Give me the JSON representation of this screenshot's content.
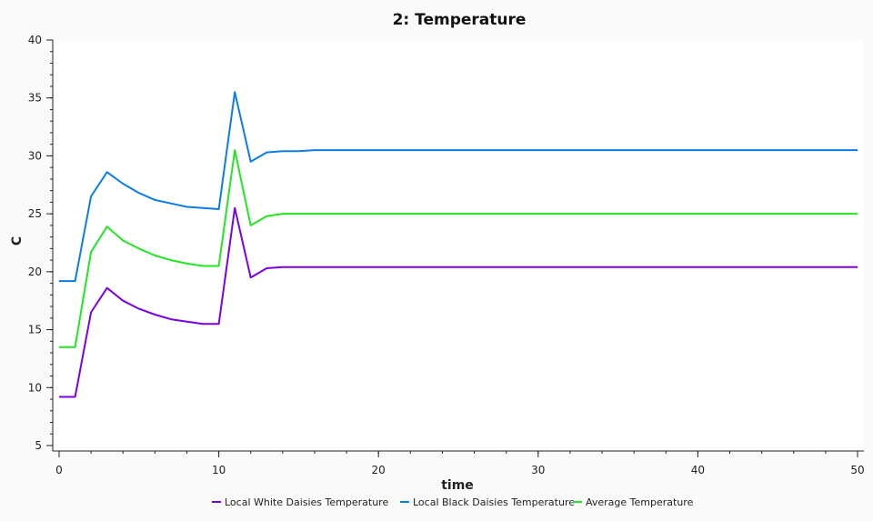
{
  "chart_data": {
    "type": "line",
    "title": "2: Temperature",
    "xlabel": "time",
    "ylabel": "C",
    "xlim": [
      0,
      50
    ],
    "ylim": [
      5,
      40
    ],
    "xticks": [
      0,
      10,
      20,
      30,
      40,
      50
    ],
    "yticks": [
      5,
      10,
      15,
      20,
      25,
      30,
      35,
      40
    ],
    "grid": false,
    "legend_position": "bottom",
    "x": [
      0,
      1,
      2,
      3,
      4,
      5,
      6,
      7,
      8,
      9,
      10,
      11,
      12,
      13,
      14,
      15,
      16,
      17,
      18,
      19,
      20,
      21,
      22,
      23,
      24,
      25,
      26,
      27,
      28,
      29,
      30,
      31,
      32,
      33,
      34,
      35,
      36,
      37,
      38,
      39,
      40,
      41,
      42,
      43,
      44,
      45,
      46,
      47,
      48,
      49,
      50
    ],
    "series": [
      {
        "name": "Local White Daisies Temperature",
        "color": "#7a00e6",
        "values": [
          9.2,
          9.2,
          16.5,
          18.6,
          17.5,
          16.8,
          16.3,
          15.9,
          15.7,
          15.5,
          15.5,
          25.5,
          19.5,
          20.3,
          20.4,
          20.4,
          20.4,
          20.4,
          20.4,
          20.4,
          20.4,
          20.4,
          20.4,
          20.4,
          20.4,
          20.4,
          20.4,
          20.4,
          20.4,
          20.4,
          20.4,
          20.4,
          20.4,
          20.4,
          20.4,
          20.4,
          20.4,
          20.4,
          20.4,
          20.4,
          20.4,
          20.4,
          20.4,
          20.4,
          20.4,
          20.4,
          20.4,
          20.4,
          20.4,
          20.4,
          20.4
        ]
      },
      {
        "name": "Local Black Daisies Temperature",
        "color": "#0a7de6",
        "values": [
          19.2,
          19.2,
          26.5,
          28.6,
          27.6,
          26.8,
          26.2,
          25.9,
          25.6,
          25.5,
          25.4,
          35.5,
          29.5,
          30.3,
          30.4,
          30.4,
          30.5,
          30.5,
          30.5,
          30.5,
          30.5,
          30.5,
          30.5,
          30.5,
          30.5,
          30.5,
          30.5,
          30.5,
          30.5,
          30.5,
          30.5,
          30.5,
          30.5,
          30.5,
          30.5,
          30.5,
          30.5,
          30.5,
          30.5,
          30.5,
          30.5,
          30.5,
          30.5,
          30.5,
          30.5,
          30.5,
          30.5,
          30.5,
          30.5,
          30.5,
          30.5
        ]
      },
      {
        "name": "Average Temperature",
        "color": "#22e622",
        "values": [
          13.5,
          13.5,
          21.7,
          23.9,
          22.7,
          22.0,
          21.4,
          21.0,
          20.7,
          20.5,
          20.5,
          30.5,
          24.0,
          24.8,
          25.0,
          25.0,
          25.0,
          25.0,
          25.0,
          25.0,
          25.0,
          25.0,
          25.0,
          25.0,
          25.0,
          25.0,
          25.0,
          25.0,
          25.0,
          25.0,
          25.0,
          25.0,
          25.0,
          25.0,
          25.0,
          25.0,
          25.0,
          25.0,
          25.0,
          25.0,
          25.0,
          25.0,
          25.0,
          25.0,
          25.0,
          25.0,
          25.0,
          25.0,
          25.0,
          25.0,
          25.0
        ]
      }
    ]
  }
}
